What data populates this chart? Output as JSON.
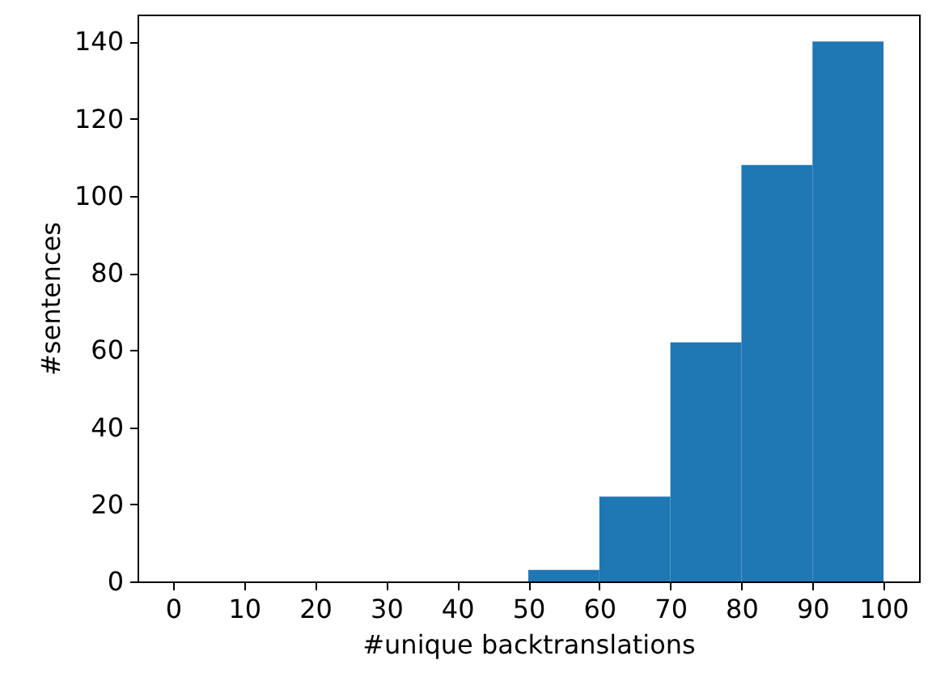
{
  "chart_data": {
    "type": "histogram",
    "xlabel": "#unique backtranslations",
    "ylabel": "#sentences",
    "bins": [
      50,
      60,
      70,
      80,
      90,
      100
    ],
    "values": [
      3,
      22,
      62,
      108,
      140
    ],
    "color": "#1f77b4",
    "xlim": [
      -5,
      105
    ],
    "xticks": [
      0,
      10,
      20,
      30,
      40,
      50,
      60,
      70,
      80,
      90,
      100
    ],
    "ylim": [
      0,
      147
    ],
    "yticks": [
      0,
      20,
      40,
      60,
      80,
      100,
      120,
      140
    ],
    "grid": false
  }
}
